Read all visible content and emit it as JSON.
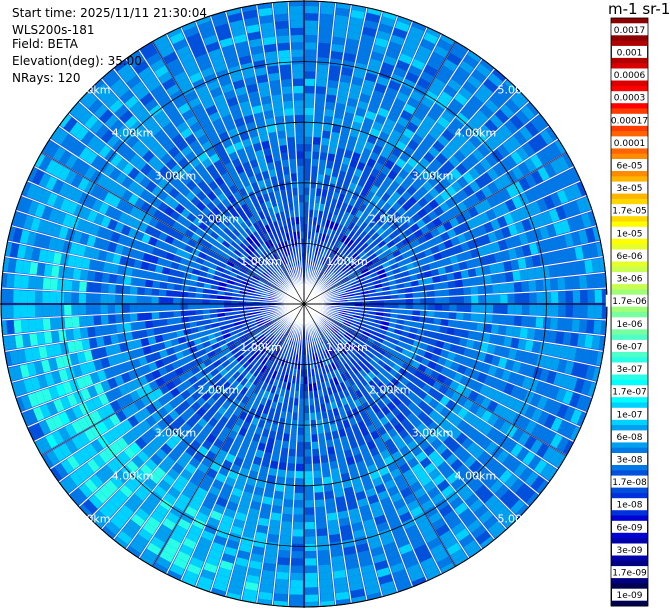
{
  "header": {
    "start_time": "Start time: 2025/11/11 21:30:04",
    "instrument": "WLS200s-181",
    "field": "Field: BETA",
    "elevation": "Elevation(deg): 35.00",
    "nrays": "NRays: 120"
  },
  "chart_data": {
    "type": "heatmap",
    "projection": "polar-ppi",
    "field": "BETA",
    "elevation_deg": 35.0,
    "n_rays": 120,
    "max_range_km": 5.0,
    "range_rings_km": [
      1.0,
      2.0,
      3.0,
      4.0,
      5.0
    ],
    "range_ring_labels": [
      "1.00km",
      "2.00km",
      "3.00km",
      "4.00km",
      "5.00km"
    ],
    "colorbar": {
      "title": "m-1 sr-1",
      "tick_labels": [
        "0.0017",
        "0.001",
        "0.0006",
        "0.0003",
        "0.00017",
        "0.0001",
        "6e-05",
        "3e-05",
        "1.7e-05",
        "1e-05",
        "6e-06",
        "3e-06",
        "1.7e-06",
        "1e-06",
        "6e-07",
        "3e-07",
        "1.7e-07",
        "1e-07",
        "6e-08",
        "3e-08",
        "1.7e-08",
        "1e-08",
        "6e-09",
        "3e-09",
        "1.7e-09",
        "1e-09"
      ],
      "colors": [
        "#8b0000",
        "#b00000",
        "#d80000",
        "#ff0000",
        "#ff3c00",
        "#ff6400",
        "#ff8c00",
        "#ffb400",
        "#ffd700",
        "#ffff00",
        "#e6ff2a",
        "#c8ff50",
        "#a0ff78",
        "#78ffa0",
        "#50ffc8",
        "#28ffe6",
        "#00ffff",
        "#00d2ff",
        "#00a0f0",
        "#0078e6",
        "#0050dc",
        "#0032dc",
        "#0000d2",
        "#0000aa",
        "#000082",
        "#000050"
      ]
    }
  }
}
